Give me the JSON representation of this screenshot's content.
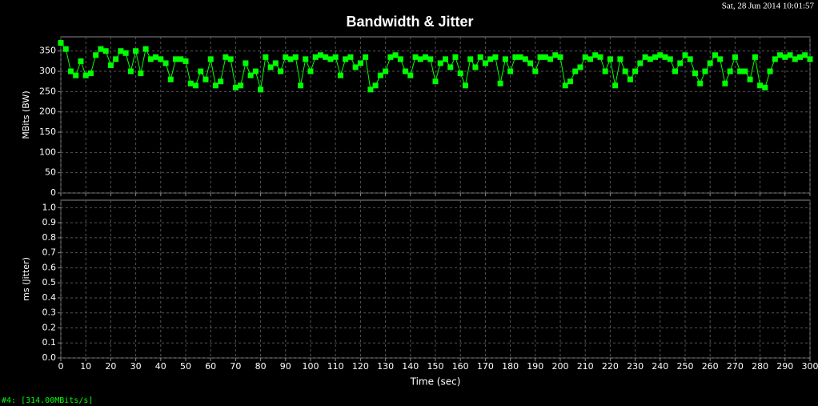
{
  "header": {
    "title": "Bandwidth & Jitter",
    "timestamp": "Sat, 28 Jun 2014 10:01:57"
  },
  "status": "#4: [314.00MBits/s]",
  "chart_data": [
    {
      "type": "line",
      "marker": "square",
      "ylabel": "MBits (BW)",
      "color": "#00ff00",
      "grid": true,
      "x": [
        0,
        2,
        4,
        6,
        8,
        10,
        12,
        14,
        16,
        18,
        20,
        22,
        24,
        26,
        28,
        30,
        32,
        34,
        36,
        38,
        40,
        42,
        44,
        46,
        48,
        50,
        52,
        54,
        56,
        58,
        60,
        62,
        64,
        66,
        68,
        70,
        72,
        74,
        76,
        78,
        80,
        82,
        84,
        86,
        88,
        90,
        92,
        94,
        96,
        98,
        100,
        102,
        104,
        106,
        108,
        110,
        112,
        114,
        116,
        118,
        120,
        122,
        124,
        126,
        128,
        130,
        132,
        134,
        136,
        138,
        140,
        142,
        144,
        146,
        148,
        150,
        152,
        154,
        156,
        158,
        160,
        162,
        164,
        166,
        168,
        170,
        172,
        174,
        176,
        178,
        180,
        182,
        184,
        186,
        188,
        190,
        192,
        194,
        196,
        198,
        200,
        202,
        204,
        206,
        208,
        210,
        212,
        214,
        216,
        218,
        220,
        222,
        224,
        226,
        228,
        230,
        232,
        234,
        236,
        238,
        240,
        242,
        244,
        246,
        248,
        250,
        252,
        254,
        256,
        258,
        260,
        262,
        264,
        266,
        268,
        270,
        272,
        274,
        276,
        278,
        280,
        282,
        284,
        286,
        288,
        290,
        292,
        294,
        296,
        298,
        300
      ],
      "values": [
        370,
        355,
        300,
        290,
        325,
        290,
        295,
        340,
        355,
        350,
        315,
        330,
        350,
        345,
        300,
        350,
        295,
        355,
        330,
        335,
        330,
        320,
        280,
        330,
        330,
        325,
        270,
        265,
        300,
        280,
        330,
        265,
        275,
        335,
        330,
        260,
        265,
        320,
        290,
        300,
        255,
        335,
        310,
        320,
        300,
        335,
        330,
        335,
        265,
        330,
        300,
        335,
        340,
        335,
        330,
        335,
        290,
        330,
        335,
        310,
        320,
        335,
        255,
        265,
        290,
        300,
        335,
        340,
        330,
        300,
        290,
        335,
        330,
        335,
        330,
        275,
        320,
        330,
        310,
        335,
        295,
        265,
        330,
        310,
        335,
        320,
        330,
        335,
        270,
        330,
        300,
        335,
        335,
        330,
        320,
        300,
        335,
        335,
        330,
        340,
        335,
        265,
        275,
        300,
        310,
        335,
        330,
        340,
        335,
        300,
        330,
        265,
        330,
        300,
        280,
        300,
        320,
        335,
        330,
        335,
        340,
        335,
        330,
        300,
        320,
        340,
        330,
        295,
        270,
        300,
        320,
        340,
        330,
        270,
        300,
        335,
        300,
        300,
        280,
        335,
        265,
        260,
        300,
        330,
        340,
        335,
        340,
        330,
        335,
        340,
        330
      ],
      "xlim": [
        0,
        300
      ],
      "xticks": [
        0,
        10,
        20,
        30,
        40,
        50,
        60,
        70,
        80,
        90,
        100,
        110,
        120,
        130,
        140,
        150,
        160,
        170,
        180,
        190,
        200,
        210,
        220,
        230,
        240,
        250,
        260,
        270,
        280,
        290,
        300
      ],
      "ylim": [
        0,
        385
      ],
      "yticks": [
        0,
        50,
        100,
        150,
        200,
        250,
        300,
        350
      ]
    },
    {
      "type": "line",
      "ylabel": "ms (Jitter)",
      "xlabel": "Time (sec)",
      "grid": true,
      "xlim": [
        0,
        300
      ],
      "xticks": [
        0,
        10,
        20,
        30,
        40,
        50,
        60,
        70,
        80,
        90,
        100,
        110,
        120,
        130,
        140,
        150,
        160,
        170,
        180,
        190,
        200,
        210,
        220,
        230,
        240,
        250,
        260,
        270,
        280,
        290,
        300
      ],
      "ylim": [
        0,
        1.05
      ],
      "yticks": [
        {
          "value": 0,
          "label": "0.0"
        },
        0.1,
        0.2,
        0.3,
        0.4,
        0.5,
        0.6,
        0.7,
        0.8,
        0.9,
        {
          "value": 1,
          "label": "1.0"
        }
      ]
    }
  ]
}
